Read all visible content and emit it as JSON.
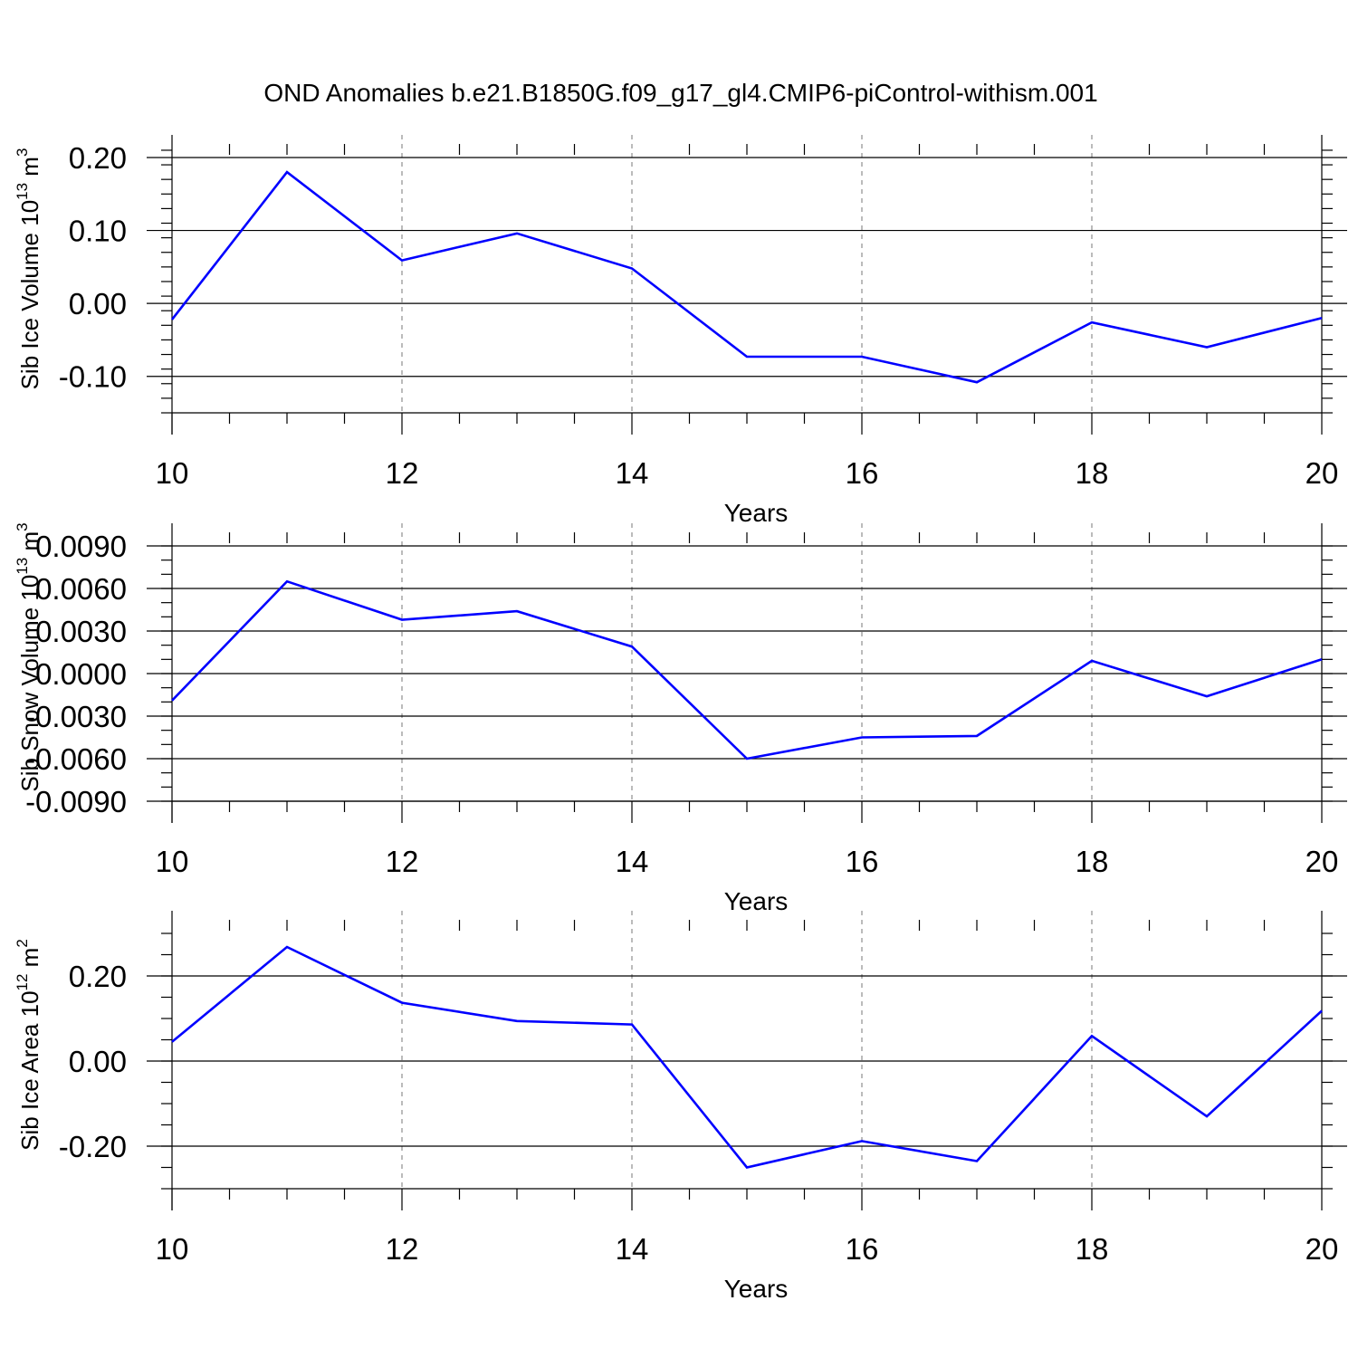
{
  "title": "OND Anomalies b.e21.B1850G.f09_g17_gl4.CMIP6-piControl-withism.001",
  "colors": {
    "line": "#0000ff",
    "axes": "#000000",
    "grid": "#777777"
  },
  "chart_data": [
    {
      "type": "line",
      "xlabel": "Years",
      "ylabel": {
        "base": "Sib Ice Volume 10",
        "exp": "13",
        "unit": " m",
        "unit_exp": "3"
      },
      "xlim": [
        10,
        20
      ],
      "ylim": [
        -0.15,
        0.2
      ],
      "xticks": [
        10,
        12,
        14,
        16,
        18,
        20
      ],
      "xtick_labels": [
        "10",
        "12",
        "14",
        "16",
        "18",
        "20"
      ],
      "yticks": [
        -0.1,
        0.0,
        0.1,
        0.2
      ],
      "ytick_labels": [
        "-0.10",
        "0.00",
        "0.10",
        "0.20"
      ],
      "minor_x_step": 0.5,
      "minor_y_step": 0.02,
      "x_gridlines": [
        12,
        14,
        16,
        18
      ],
      "series": [
        {
          "x": [
            10,
            11,
            12,
            13,
            14,
            15,
            16,
            17,
            18,
            19,
            20
          ],
          "y": [
            -0.022,
            0.18,
            0.059,
            0.096,
            0.048,
            -0.073,
            -0.073,
            -0.108,
            -0.026,
            -0.06,
            -0.02
          ]
        }
      ]
    },
    {
      "type": "line",
      "xlabel": "Years",
      "ylabel": {
        "base": "Sib Snow Volume 10",
        "exp": "13",
        "unit": " m",
        "unit_exp": "3"
      },
      "xlim": [
        10,
        20
      ],
      "ylim": [
        -0.009,
        0.009
      ],
      "xticks": [
        10,
        12,
        14,
        16,
        18,
        20
      ],
      "xtick_labels": [
        "10",
        "12",
        "14",
        "16",
        "18",
        "20"
      ],
      "yticks": [
        -0.009,
        -0.006,
        -0.003,
        0.0,
        0.003,
        0.006,
        0.009
      ],
      "ytick_labels": [
        "-0.0090",
        "-0.0060",
        "-0.0030",
        "0.0000",
        "0.0030",
        "0.0060",
        "0.0090"
      ],
      "minor_x_step": 0.5,
      "minor_y_step": 0.001,
      "x_gridlines": [
        12,
        14,
        16,
        18
      ],
      "series": [
        {
          "x": [
            10,
            11,
            12,
            13,
            14,
            15,
            16,
            17,
            18,
            19,
            20
          ],
          "y": [
            -0.0019,
            0.0065,
            0.0038,
            0.0044,
            0.0019,
            -0.006,
            -0.0045,
            -0.0044,
            0.0009,
            -0.0016,
            0.001
          ]
        }
      ]
    },
    {
      "type": "line",
      "xlabel": "Years",
      "ylabel": {
        "base": "Sib Ice Area 10",
        "exp": "12",
        "unit": " m",
        "unit_exp": "2"
      },
      "xlim": [
        10,
        20
      ],
      "ylim": [
        -0.3,
        0.3
      ],
      "xticks": [
        10,
        12,
        14,
        16,
        18,
        20
      ],
      "xtick_labels": [
        "10",
        "12",
        "14",
        "16",
        "18",
        "20"
      ],
      "yticks": [
        -0.2,
        0.0,
        0.2
      ],
      "ytick_labels": [
        "-0.20",
        "0.00",
        "0.20"
      ],
      "minor_x_step": 0.5,
      "minor_y_step": 0.05,
      "x_gridlines": [
        12,
        14,
        16,
        18
      ],
      "series": [
        {
          "x": [
            10,
            11,
            12,
            13,
            14,
            15,
            16,
            17,
            18,
            19,
            20
          ],
          "y": [
            0.045,
            0.268,
            0.137,
            0.094,
            0.086,
            -0.25,
            -0.188,
            -0.235,
            0.059,
            -0.13,
            0.118
          ]
        }
      ]
    }
  ]
}
